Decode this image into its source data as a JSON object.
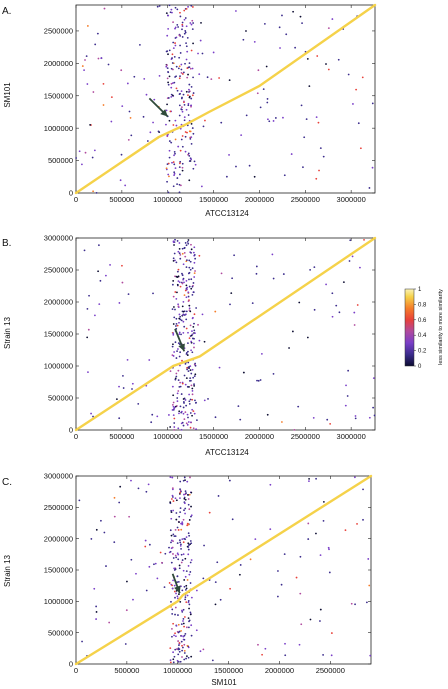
{
  "colors": {
    "diagonal": "#f5d24a",
    "dot_scale": [
      "#0b0b30",
      "#3b2c8c",
      "#7a3fc8",
      "#b04a9e",
      "#e8413a",
      "#f57d2a",
      "#f5d24a",
      "#fbf3b8"
    ],
    "arrow": "#2f4a3a"
  },
  "colorbar": {
    "ticks": [
      "1",
      "0.8",
      "0.6",
      "0.4",
      "0.2",
      "0"
    ],
    "label": "less similarity to more similarity"
  },
  "chart_data": [
    {
      "type": "scatter",
      "panel": "A.",
      "xlabel": "ATCC13124",
      "ylabel": "SM101",
      "xlim": [
        0,
        3260000
      ],
      "ylim": [
        0,
        2900000
      ],
      "xticks": [
        0,
        500000,
        1000000,
        1500000,
        2000000,
        2500000,
        3000000
      ],
      "xtick_labels": [
        "0",
        "500000",
        "1000000",
        "1500000",
        "2000000",
        "2500000",
        "3000000"
      ],
      "yticks": [
        0,
        500000,
        1000000,
        1500000,
        2000000,
        2500000
      ],
      "ytick_labels": [
        "0",
        "500000",
        "1000000",
        "1500000",
        "2000000",
        "2500000"
      ],
      "diagonal": [
        [
          0,
          0
        ],
        [
          900000,
          860000
        ],
        [
          1200000,
          1060000
        ],
        [
          1450000,
          1250000
        ],
        [
          2000000,
          1650000
        ],
        [
          3260000,
          2900000
        ]
      ],
      "arrow": {
        "from": [
          800000,
          1460000
        ],
        "to": [
          1000000,
          1180000
        ]
      },
      "band": {
        "center": 1130000,
        "width": 300000,
        "count": 220
      },
      "scatter_count": 150,
      "seed": 11
    },
    {
      "type": "scatter",
      "panel": "B.",
      "xlabel": "ATCC13124",
      "ylabel": "Strain 13",
      "xlim": [
        0,
        3260000
      ],
      "ylim": [
        0,
        3000000
      ],
      "xticks": [
        0,
        500000,
        1000000,
        1500000,
        2000000,
        2500000,
        3000000
      ],
      "xtick_labels": [
        "0",
        "500000",
        "1000000",
        "1500000",
        "2000000",
        "2500000",
        "3000000"
      ],
      "yticks": [
        0,
        500000,
        1000000,
        1500000,
        2000000,
        2500000,
        3000000
      ],
      "ytick_labels": [
        "0",
        "500000",
        "1000000",
        "1500000",
        "2000000",
        "2500000",
        "3000000"
      ],
      "diagonal": [
        [
          0,
          0
        ],
        [
          1060000,
          1000000
        ],
        [
          1350000,
          1150000
        ],
        [
          3260000,
          3000000
        ]
      ],
      "arrow": {
        "from": [
          1080000,
          1580000
        ],
        "to": [
          1180000,
          1230000
        ]
      },
      "band": {
        "center": 1180000,
        "width": 260000,
        "count": 300
      },
      "scatter_count": 110,
      "seed": 23
    },
    {
      "type": "scatter",
      "panel": "C.",
      "xlabel": "SM101",
      "ylabel": "Strain 13",
      "xlim": [
        0,
        2900000
      ],
      "ylim": [
        0,
        3000000
      ],
      "xticks": [
        0,
        500000,
        1000000,
        1500000,
        2000000,
        2500000
      ],
      "xtick_labels": [
        "0",
        "500000",
        "1000000",
        "1500000",
        "2000000",
        "2500000"
      ],
      "yticks": [
        0,
        500000,
        1000000,
        1500000,
        2000000,
        2500000,
        3000000
      ],
      "ytick_labels": [
        "0",
        "500000",
        "1000000",
        "1500000",
        "2000000",
        "2500000",
        "3000000"
      ],
      "diagonal": [
        [
          0,
          0
        ],
        [
          1000000,
          1000000
        ],
        [
          1050000,
          1100000
        ],
        [
          2900000,
          3000000
        ]
      ],
      "arrow": {
        "from": [
          950000,
          1440000
        ],
        "to": [
          1020000,
          1130000
        ]
      },
      "band": {
        "center": 1030000,
        "width": 220000,
        "count": 250
      },
      "scatter_count": 120,
      "seed": 37
    }
  ]
}
